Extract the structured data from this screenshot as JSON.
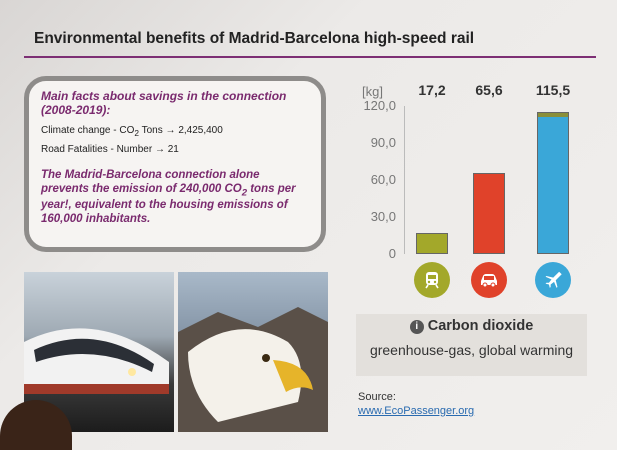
{
  "slide": {
    "title": "Environmental benefits of Madrid-Barcelona high-speed rail"
  },
  "facts": {
    "heading": "Main facts about savings in the connection (2008-2019):",
    "items": [
      {
        "label_pre": "Climate change - CO",
        "label_sub": "2",
        "label_post": " Tons",
        "arrow": "→",
        "value": "2,425,400"
      },
      {
        "label_pre": "Road Fatalities - Number",
        "label_sub": "",
        "label_post": "",
        "arrow": "→",
        "value": "21"
      }
    ],
    "highlight_pre": "The Madrid-Barcelona connection alone prevents the emission of 240,000 CO",
    "highlight_sub": "2",
    "highlight_post": " tons per year!, equivalent to the housing emissions of 160,000 inhabitants."
  },
  "chart_data": {
    "type": "bar",
    "unit_label": "[kg]",
    "categories": [
      "train",
      "car",
      "plane"
    ],
    "values": [
      17.2,
      65.6,
      115.5
    ],
    "value_labels": [
      "17,2",
      "65,6",
      "115,5"
    ],
    "tick_labels": [
      "120,0",
      "90,0",
      "60,0",
      "30,0",
      "0"
    ],
    "ylim": [
      0,
      120
    ],
    "colors": [
      "#a3a82a",
      "#e0422a",
      "#3aa7d8"
    ],
    "icon_colors": [
      "#a3a82a",
      "#e0422a",
      "#3aa7d8"
    ],
    "icons": [
      "train-icon",
      "car-icon",
      "plane-icon"
    ],
    "grid": false,
    "legend": "none"
  },
  "carbon_panel": {
    "title": "Carbon dioxide",
    "subtitle": "greenhouse-gas, global warming"
  },
  "source": {
    "label": "Source:",
    "link": "www.EcoPassenger.org"
  }
}
